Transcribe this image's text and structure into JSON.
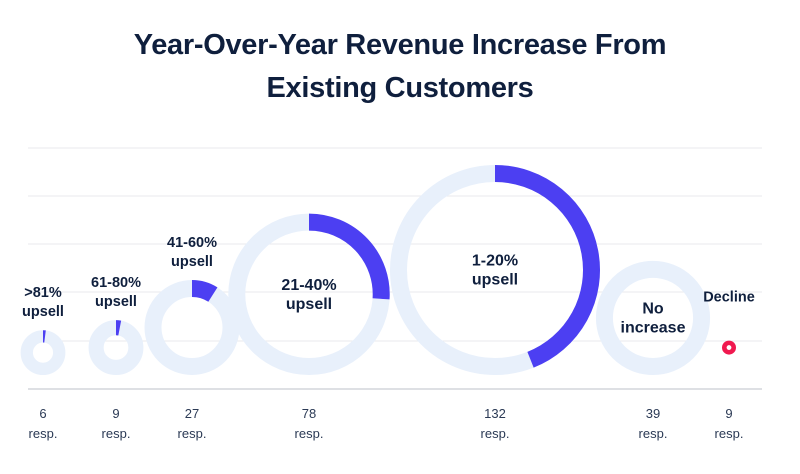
{
  "chart_data": {
    "type": "donut-bubble",
    "title_line1": "Year-Over-Year Revenue Increase From",
    "title_line2": "Existing Customers",
    "unit_label": "resp.",
    "colors": {
      "ring_track": "#e8f0fb",
      "ring_fill": "#4c3ff2",
      "decline": "#f0194f",
      "gridline": "#e8eaee",
      "baseline": "#c9cdd4"
    },
    "categories": [
      {
        "label": [
          ">81%",
          "upsell"
        ],
        "responses": 6,
        "count_label": "6"
      },
      {
        "label": [
          "61-80%",
          "upsell"
        ],
        "responses": 9,
        "count_label": "9"
      },
      {
        "label": [
          "41-60%",
          "upsell"
        ],
        "responses": 27,
        "count_label": "27"
      },
      {
        "label": [
          "21-40%",
          "upsell"
        ],
        "responses": 78,
        "count_label": "78"
      },
      {
        "label": [
          "1-20%",
          "upsell"
        ],
        "responses": 132,
        "count_label": "132"
      },
      {
        "label": [
          "No",
          "increase"
        ],
        "responses": 39,
        "count_label": "39"
      },
      {
        "label": [
          "Decline"
        ],
        "responses": 9,
        "count_label": "9"
      }
    ]
  }
}
